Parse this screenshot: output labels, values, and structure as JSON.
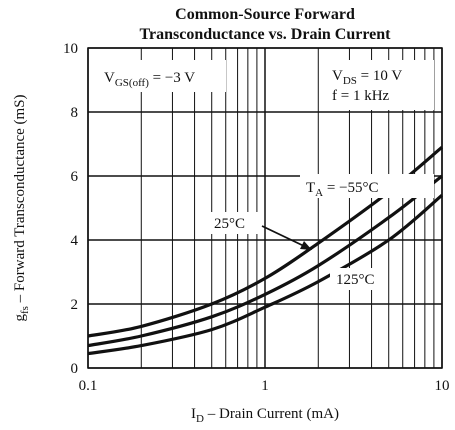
{
  "chart_data": {
    "type": "line",
    "title": [
      "Common-Source Forward",
      "Transconductance vs. Drain Current"
    ],
    "x_label": {
      "main": "I",
      "sub": "D",
      "tail": " – Drain Current (mA)"
    },
    "y_label": {
      "main": "g",
      "sub": "fs",
      "tail": " – Forward Transconductance (mS)"
    },
    "x": [
      0.1,
      0.2,
      0.5,
      1,
      2,
      5,
      10
    ],
    "series": [
      {
        "name": "−55°C",
        "color": "#111111",
        "values": [
          1.0,
          1.3,
          2.0,
          2.8,
          3.9,
          5.5,
          6.9
        ]
      },
      {
        "name": "25°C",
        "color": "#111111",
        "values": [
          0.7,
          1.0,
          1.6,
          2.3,
          3.2,
          4.7,
          6.0
        ]
      },
      {
        "name": "125°C",
        "color": "#111111",
        "values": [
          0.45,
          0.7,
          1.2,
          1.9,
          2.7,
          4.0,
          5.4
        ]
      }
    ],
    "series_prefix": {
      "main": "T",
      "sub": "A",
      "tail": " = "
    },
    "annotations": [
      {
        "main": "V",
        "sub": "GS(off)",
        "tail": " = −3 V"
      },
      {
        "main": "V",
        "sub": "DS",
        "tail": " = 10 V"
      },
      {
        "text": "f = 1 kHz"
      }
    ],
    "xscale": "log",
    "xlim": [
      0.1,
      10
    ],
    "xticks": [
      0.1,
      1,
      10
    ],
    "xminorticks": [
      0.2,
      0.3,
      0.4,
      0.5,
      0.6,
      0.7,
      0.8,
      0.9,
      2,
      3,
      4,
      5,
      6,
      7,
      8,
      9
    ],
    "ylim": [
      0,
      10
    ],
    "yticks": [
      0,
      2,
      4,
      6,
      8,
      10
    ],
    "grid": true
  }
}
